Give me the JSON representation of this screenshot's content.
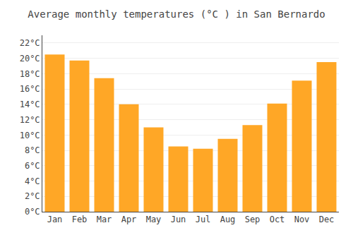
{
  "chart_data": {
    "type": "bar",
    "title": "Average monthly temperatures (°C ) in San Bernardo",
    "categories": [
      "Jan",
      "Feb",
      "Mar",
      "Apr",
      "May",
      "Jun",
      "Jul",
      "Aug",
      "Sep",
      "Oct",
      "Nov",
      "Dec"
    ],
    "values": [
      20.5,
      19.7,
      17.4,
      14.0,
      11.0,
      8.5,
      8.2,
      9.5,
      11.3,
      14.1,
      17.1,
      19.5
    ],
    "color": "#FFA726",
    "ylim": [
      0,
      23
    ],
    "yticks": [
      {
        "value": 0,
        "label": "0°C"
      },
      {
        "value": 2,
        "label": "2°C"
      },
      {
        "value": 4,
        "label": "4°C"
      },
      {
        "value": 6,
        "label": "6°C"
      },
      {
        "value": 8,
        "label": "8°C"
      },
      {
        "value": 10,
        "label": "10°C"
      },
      {
        "value": 12,
        "label": "12°C"
      },
      {
        "value": 14,
        "label": "14°C"
      },
      {
        "value": 16,
        "label": "16°C"
      },
      {
        "value": 18,
        "label": "18°C"
      },
      {
        "value": 20,
        "label": "20°C"
      },
      {
        "value": 22,
        "label": "22°C"
      }
    ],
    "grid": true
  }
}
